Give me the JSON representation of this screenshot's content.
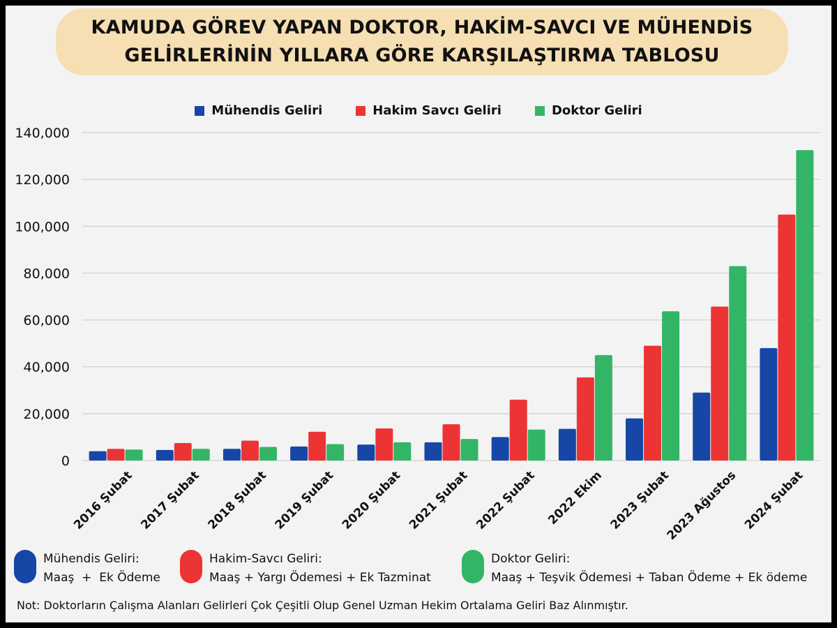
{
  "title": {
    "line1": "KAMUDA GÖREV YAPAN DOKTOR, HAKİM-SAVCI VE MÜHENDİS",
    "line2": "GELİRLERİNİN YILLARA GÖRE KARŞILAŞTIRMA TABLOSU"
  },
  "colors": {
    "muhendis": "#1646a6",
    "hakim": "#ec3434",
    "doktor": "#33b566",
    "grid": "#c8c8c8"
  },
  "chart_data": {
    "type": "bar",
    "categories": [
      "2016 Şubat",
      "2017 Şubat",
      "2018 Şubat",
      "2019 Şubat",
      "2020 Şubat",
      "2021 Şubat",
      "2022 Şubat",
      "2022 Ekim",
      "2023 Şubat",
      "2023 Ağustos",
      "2024 Şubat"
    ],
    "series": [
      {
        "name": "Mühendis Geliri",
        "values": [
          4000,
          4500,
          5000,
          6000,
          6800,
          7800,
          10000,
          13500,
          18000,
          29000,
          48000
        ]
      },
      {
        "name": "Hakim Savcı Geliri",
        "values": [
          5000,
          7500,
          8500,
          12300,
          13700,
          15500,
          26000,
          35500,
          49000,
          65700,
          105000
        ]
      },
      {
        "name": "Doktor Geliri",
        "values": [
          4700,
          5000,
          5800,
          7000,
          7800,
          9200,
          13200,
          45000,
          63700,
          83000,
          132500
        ]
      }
    ],
    "ylim": [
      0,
      140000
    ],
    "yticks": [
      {
        "value": 0,
        "label": "0"
      },
      {
        "value": 20000,
        "label": "20,000"
      },
      {
        "value": 40000,
        "label": "40,000"
      },
      {
        "value": 60000,
        "label": "60,000"
      },
      {
        "value": 80000,
        "label": "80,000"
      },
      {
        "value": 100000,
        "label": "100,000"
      },
      {
        "value": 120000,
        "label": "120,000"
      },
      {
        "value": 140000,
        "label": "140,000"
      }
    ],
    "grid": true,
    "legend": "top-center"
  },
  "explanations": [
    {
      "title": "Mühendis Geliri:",
      "detail": "Maaş  +  Ek Ödeme"
    },
    {
      "title": "Hakim-Savcı Geliri:",
      "detail": "Maaş + Yargı Ödemesi + Ek Tazminat"
    },
    {
      "title": "Doktor Geliri:",
      "detail": "Maaş + Teşvik Ödemesi + Taban Ödeme + Ek ödeme"
    }
  ],
  "note": "Not: Doktorların Çalışma Alanları Gelirleri Çok Çeşitli Olup Genel Uzman Hekim Ortalama Geliri Baz Alınmıştır."
}
